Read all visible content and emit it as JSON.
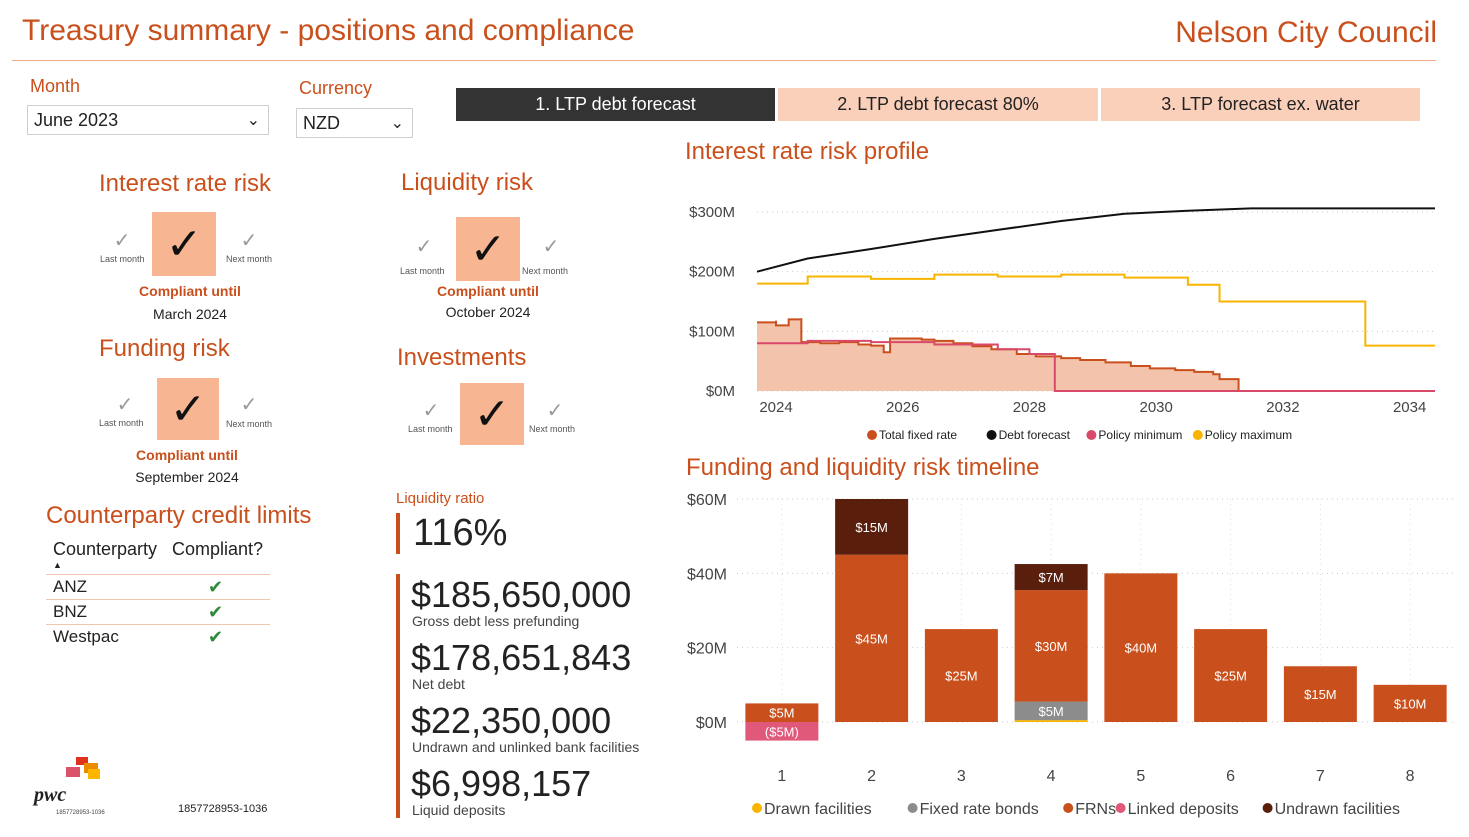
{
  "header": {
    "title": "Treasury summary - positions and compliance",
    "client": "Nelson City Council"
  },
  "filters": {
    "month_label": "Month",
    "month_value": "June 2023",
    "currency_label": "Currency",
    "currency_value": "NZD"
  },
  "tabs": [
    {
      "label": "1. LTP debt forecast",
      "active": true
    },
    {
      "label": "2. LTP debt forecast 80%",
      "active": false
    },
    {
      "label": "3. LTP forecast ex. water",
      "active": false
    }
  ],
  "risks": {
    "interest": {
      "title": "Interest rate risk",
      "last": "Last month",
      "next": "Next month",
      "compliant": "Compliant until",
      "date": "March 2024"
    },
    "liquidity": {
      "title": "Liquidity risk",
      "last": "Last month",
      "next": "Next month",
      "compliant": "Compliant until",
      "date": "October 2024"
    },
    "funding": {
      "title": "Funding risk",
      "last": "Last month",
      "next": "Next month",
      "compliant": "Compliant until",
      "date": "September 2024"
    },
    "investments": {
      "title": "Investments",
      "last": "Last month",
      "next": "Next month"
    }
  },
  "counterparty": {
    "title": "Counterparty credit limits",
    "col1": "Counterparty",
    "col2": "Compliant?",
    "rows": [
      {
        "name": "ANZ"
      },
      {
        "name": "BNZ"
      },
      {
        "name": "Westpac"
      }
    ]
  },
  "liquidity_ratio": {
    "label": "Liquidity ratio",
    "value": "116%"
  },
  "kpis": [
    {
      "value": "$185,650,000",
      "label": "Gross debt less prefunding"
    },
    {
      "value": "$178,651,843",
      "label": "Net debt"
    },
    {
      "value": "$22,350,000",
      "label": "Undrawn and unlinked bank facilities"
    },
    {
      "value": "$6,998,157",
      "label": "Liquid deposits"
    }
  ],
  "footer": {
    "ref": "1857728953-1036",
    "logo_text": "pwc",
    "logo_ref": "1857728953-1036"
  },
  "chart_data": [
    {
      "type": "line",
      "title": "Interest rate risk profile",
      "ylim": [
        0,
        300
      ],
      "y_ticks": [
        "$0M",
        "$100M",
        "$200M",
        "$300M"
      ],
      "x_ticks": [
        "2024",
        "2026",
        "2028",
        "2030",
        "2032",
        "2034"
      ],
      "xlim": [
        2023.7,
        2034.4
      ],
      "legend_position": "bottom",
      "series": [
        {
          "name": "Total fixed rate",
          "color": "#c9501c",
          "x": [
            2023.7,
            2024.0,
            2024.0,
            2024.2,
            2024.4,
            2024.4,
            2024.7,
            2025.0,
            2025.3,
            2025.5,
            2025.7,
            2025.8,
            2026.3,
            2026.5,
            2026.8,
            2027.1,
            2027.4,
            2027.8,
            2028.1,
            2028.5,
            2028.8,
            2029.2,
            2029.6,
            2029.9,
            2030.3,
            2030.6,
            2030.9,
            2031.0,
            2031.3,
            2034.4
          ],
          "y": [
            115,
            118,
            110,
            120,
            122,
            82,
            80,
            82,
            78,
            76,
            65,
            88,
            86,
            84,
            80,
            75,
            70,
            62,
            58,
            55,
            52,
            48,
            42,
            38,
            35,
            32,
            28,
            20,
            0,
            0
          ]
        },
        {
          "name": "Debt forecast",
          "color": "#111111",
          "x": [
            2023.7,
            2024.5,
            2025.5,
            2026.5,
            2027.5,
            2028.5,
            2029.5,
            2030.5,
            2031.5,
            2032.5,
            2033.5,
            2034.4
          ],
          "y": [
            200,
            222,
            238,
            255,
            270,
            285,
            297,
            302,
            306,
            306,
            306,
            306
          ]
        },
        {
          "name": "Policy minimum",
          "color": "#d94a6a",
          "x": [
            2023.7,
            2024.5,
            2025.5,
            2026.5,
            2027.5,
            2028.0,
            2028.4,
            2028.4,
            2034.4
          ],
          "y": [
            80,
            84,
            82,
            78,
            70,
            62,
            60,
            0,
            0
          ]
        },
        {
          "name": "Policy maximum",
          "color": "#f7b500",
          "x": [
            2023.7,
            2024.5,
            2025.5,
            2026.5,
            2027.5,
            2028.5,
            2029.5,
            2030.5,
            2031.0,
            2032.5,
            2033.3,
            2033.3,
            2034.4
          ],
          "y": [
            180,
            192,
            188,
            195,
            192,
            195,
            190,
            178,
            150,
            150,
            150,
            76,
            76
          ]
        }
      ]
    },
    {
      "type": "bar",
      "title": "Funding and liquidity risk timeline",
      "categories": [
        "1",
        "2",
        "3",
        "4",
        "5",
        "6",
        "7",
        "8"
      ],
      "ylim": [
        -5,
        60
      ],
      "y_ticks": [
        "$0M",
        "$20M",
        "$40M",
        "$60M"
      ],
      "legend_position": "bottom",
      "series": [
        {
          "name": "Drawn facilities",
          "color": "#f7b500",
          "values": [
            0,
            0,
            0,
            0.5,
            0,
            0,
            0,
            0
          ]
        },
        {
          "name": "Fixed rate bonds",
          "color": "#8c8c8c",
          "values": [
            0,
            0,
            0,
            5,
            0,
            0,
            0,
            0
          ]
        },
        {
          "name": "FRNs",
          "color": "#c9501c",
          "values": [
            5,
            45,
            25,
            30,
            40,
            25,
            15,
            10
          ]
        },
        {
          "name": "Linked deposits",
          "color": "#e0587a",
          "values": [
            -5,
            0,
            0,
            0,
            0,
            0,
            0,
            0
          ]
        },
        {
          "name": "Undrawn facilities",
          "color": "#5a1f0c",
          "values": [
            0,
            15,
            0,
            7,
            0,
            0,
            0,
            0
          ]
        }
      ],
      "data_labels": [
        {
          "cat": 0,
          "series": "FRNs",
          "text": "$5M"
        },
        {
          "cat": 0,
          "series": "Linked deposits",
          "text": "($5M)"
        },
        {
          "cat": 1,
          "series": "FRNs",
          "text": "$45M"
        },
        {
          "cat": 1,
          "series": "Undrawn facilities",
          "text": "$15M"
        },
        {
          "cat": 2,
          "series": "FRNs",
          "text": "$25M"
        },
        {
          "cat": 3,
          "series": "Fixed rate bonds",
          "text": "$5M"
        },
        {
          "cat": 3,
          "series": "FRNs",
          "text": "$30M"
        },
        {
          "cat": 3,
          "series": "Undrawn facilities",
          "text": "$7M"
        },
        {
          "cat": 4,
          "series": "FRNs",
          "text": "$40M"
        },
        {
          "cat": 5,
          "series": "FRNs",
          "text": "$25M"
        },
        {
          "cat": 6,
          "series": "FRNs",
          "text": "$15M"
        },
        {
          "cat": 7,
          "series": "FRNs",
          "text": "$10M"
        }
      ]
    }
  ]
}
